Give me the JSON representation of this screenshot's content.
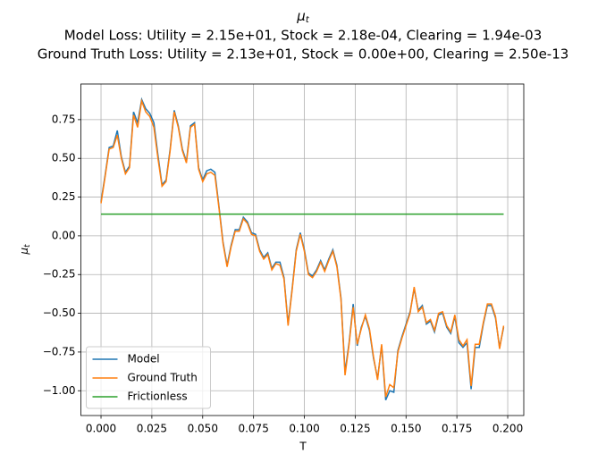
{
  "chart_data": {
    "type": "line",
    "title": "μ",
    "title_subscript": "t",
    "subtitle_lines": [
      "Model Loss: Utility = 2.15e+01, Stock = 2.18e-04, Clearing = 1.94e-03",
      "Ground Truth Loss: Utility = 2.13e+01, Stock = 0.00e+00, Clearing = 2.50e-13"
    ],
    "xlabel": "T",
    "ylabel": "μ",
    "ylabel_subscript": "t",
    "x": [
      0,
      0.002,
      0.004,
      0.006,
      0.008,
      0.01,
      0.012,
      0.014,
      0.016,
      0.018,
      0.02,
      0.022,
      0.024,
      0.026,
      0.028,
      0.03,
      0.032,
      0.034,
      0.036,
      0.038,
      0.04,
      0.042,
      0.044,
      0.046,
      0.048,
      0.05,
      0.052,
      0.054,
      0.056,
      0.058,
      0.06,
      0.062,
      0.064,
      0.066,
      0.068,
      0.07,
      0.072,
      0.074,
      0.076,
      0.078,
      0.08,
      0.082,
      0.084,
      0.086,
      0.088,
      0.09,
      0.092,
      0.094,
      0.096,
      0.098,
      0.1,
      0.102,
      0.104,
      0.106,
      0.108,
      0.11,
      0.112,
      0.114,
      0.116,
      0.118,
      0.12,
      0.122,
      0.124,
      0.126,
      0.128,
      0.13,
      0.132,
      0.134,
      0.136,
      0.138,
      0.14,
      0.142,
      0.144,
      0.146,
      0.148,
      0.15,
      0.152,
      0.154,
      0.156,
      0.158,
      0.16,
      0.162,
      0.164,
      0.166,
      0.168,
      0.17,
      0.172,
      0.174,
      0.176,
      0.178,
      0.18,
      0.182,
      0.184,
      0.186,
      0.188,
      0.19,
      0.192,
      0.194,
      0.196,
      0.198
    ],
    "series": [
      {
        "name": "Model",
        "color": "#1f77b4",
        "values": [
          0.22,
          0.39,
          0.57,
          0.58,
          0.68,
          0.51,
          0.41,
          0.45,
          0.8,
          0.73,
          0.88,
          0.82,
          0.79,
          0.73,
          0.52,
          0.33,
          0.36,
          0.56,
          0.81,
          0.71,
          0.56,
          0.48,
          0.71,
          0.73,
          0.44,
          0.36,
          0.42,
          0.43,
          0.41,
          0.19,
          -0.04,
          -0.19,
          -0.06,
          0.04,
          0.04,
          0.12,
          0.09,
          0.02,
          0.01,
          -0.09,
          -0.14,
          -0.11,
          -0.21,
          -0.17,
          -0.17,
          -0.27,
          -0.57,
          -0.34,
          -0.09,
          0.02,
          -0.09,
          -0.24,
          -0.26,
          -0.22,
          -0.16,
          -0.22,
          -0.15,
          -0.09,
          -0.19,
          -0.4,
          -0.88,
          -0.69,
          -0.44,
          -0.71,
          -0.59,
          -0.52,
          -0.61,
          -0.79,
          -0.92,
          -0.71,
          -1.06,
          -1.0,
          -1.01,
          -0.74,
          -0.65,
          -0.57,
          -0.49,
          -0.34,
          -0.48,
          -0.45,
          -0.57,
          -0.55,
          -0.62,
          -0.51,
          -0.5,
          -0.59,
          -0.63,
          -0.52,
          -0.69,
          -0.72,
          -0.69,
          -0.99,
          -0.72,
          -0.72,
          -0.57,
          -0.45,
          -0.45,
          -0.53,
          -0.72,
          -0.59
        ]
      },
      {
        "name": "Ground Truth",
        "color": "#ff7f0e",
        "values": [
          0.21,
          0.38,
          0.56,
          0.57,
          0.65,
          0.5,
          0.4,
          0.44,
          0.78,
          0.7,
          0.87,
          0.8,
          0.77,
          0.7,
          0.5,
          0.32,
          0.35,
          0.55,
          0.8,
          0.7,
          0.55,
          0.47,
          0.7,
          0.72,
          0.43,
          0.35,
          0.4,
          0.41,
          0.39,
          0.18,
          -0.05,
          -0.2,
          -0.07,
          0.03,
          0.03,
          0.11,
          0.08,
          0.01,
          0.0,
          -0.1,
          -0.15,
          -0.12,
          -0.22,
          -0.18,
          -0.19,
          -0.28,
          -0.58,
          -0.35,
          -0.1,
          0.01,
          -0.1,
          -0.25,
          -0.27,
          -0.23,
          -0.17,
          -0.23,
          -0.16,
          -0.1,
          -0.2,
          -0.41,
          -0.9,
          -0.7,
          -0.46,
          -0.7,
          -0.6,
          -0.51,
          -0.6,
          -0.78,
          -0.93,
          -0.7,
          -1.04,
          -0.96,
          -0.98,
          -0.75,
          -0.66,
          -0.58,
          -0.5,
          -0.33,
          -0.49,
          -0.46,
          -0.56,
          -0.54,
          -0.61,
          -0.5,
          -0.49,
          -0.58,
          -0.62,
          -0.51,
          -0.67,
          -0.71,
          -0.67,
          -0.97,
          -0.7,
          -0.7,
          -0.56,
          -0.44,
          -0.44,
          -0.52,
          -0.73,
          -0.58
        ]
      },
      {
        "name": "Frictionless",
        "color": "#2ca02c",
        "values": [
          0.14,
          0.14,
          0.14,
          0.14,
          0.14,
          0.14,
          0.14,
          0.14,
          0.14,
          0.14,
          0.14,
          0.14,
          0.14,
          0.14,
          0.14,
          0.14,
          0.14,
          0.14,
          0.14,
          0.14,
          0.14,
          0.14,
          0.14,
          0.14,
          0.14,
          0.14,
          0.14,
          0.14,
          0.14,
          0.14,
          0.14,
          0.14,
          0.14,
          0.14,
          0.14,
          0.14,
          0.14,
          0.14,
          0.14,
          0.14,
          0.14,
          0.14,
          0.14,
          0.14,
          0.14,
          0.14,
          0.14,
          0.14,
          0.14,
          0.14,
          0.14,
          0.14,
          0.14,
          0.14,
          0.14,
          0.14,
          0.14,
          0.14,
          0.14,
          0.14,
          0.14,
          0.14,
          0.14,
          0.14,
          0.14,
          0.14,
          0.14,
          0.14,
          0.14,
          0.14,
          0.14,
          0.14,
          0.14,
          0.14,
          0.14,
          0.14,
          0.14,
          0.14,
          0.14,
          0.14,
          0.14,
          0.14,
          0.14,
          0.14,
          0.14,
          0.14,
          0.14,
          0.14,
          0.14,
          0.14,
          0.14,
          0.14,
          0.14,
          0.14,
          0.14,
          0.14,
          0.14,
          0.14,
          0.14,
          0.14
        ]
      }
    ],
    "xlim": [
      -0.0099,
      0.2079
    ],
    "ylim": [
      -1.16,
      0.98
    ],
    "xticks": [
      {
        "value": 0,
        "label": "0.000"
      },
      {
        "value": 0.025,
        "label": "0.025"
      },
      {
        "value": 0.05,
        "label": "0.050"
      },
      {
        "value": 0.075,
        "label": "0.075"
      },
      {
        "value": 0.1,
        "label": "0.100"
      },
      {
        "value": 0.125,
        "label": "0.125"
      },
      {
        "value": 0.15,
        "label": "0.150"
      },
      {
        "value": 0.175,
        "label": "0.175"
      },
      {
        "value": 0.2,
        "label": "0.200"
      }
    ],
    "yticks": [
      {
        "value": -1,
        "label": "−1.00"
      },
      {
        "value": -0.75,
        "label": "−0.75"
      },
      {
        "value": -0.5,
        "label": "−0.50"
      },
      {
        "value": -0.25,
        "label": "−0.25"
      },
      {
        "value": 0,
        "label": "0.00"
      },
      {
        "value": 0.25,
        "label": "0.25"
      },
      {
        "value": 0.5,
        "label": "0.50"
      },
      {
        "value": 0.75,
        "label": "0.75"
      }
    ],
    "grid": true,
    "legend": "lower left"
  }
}
